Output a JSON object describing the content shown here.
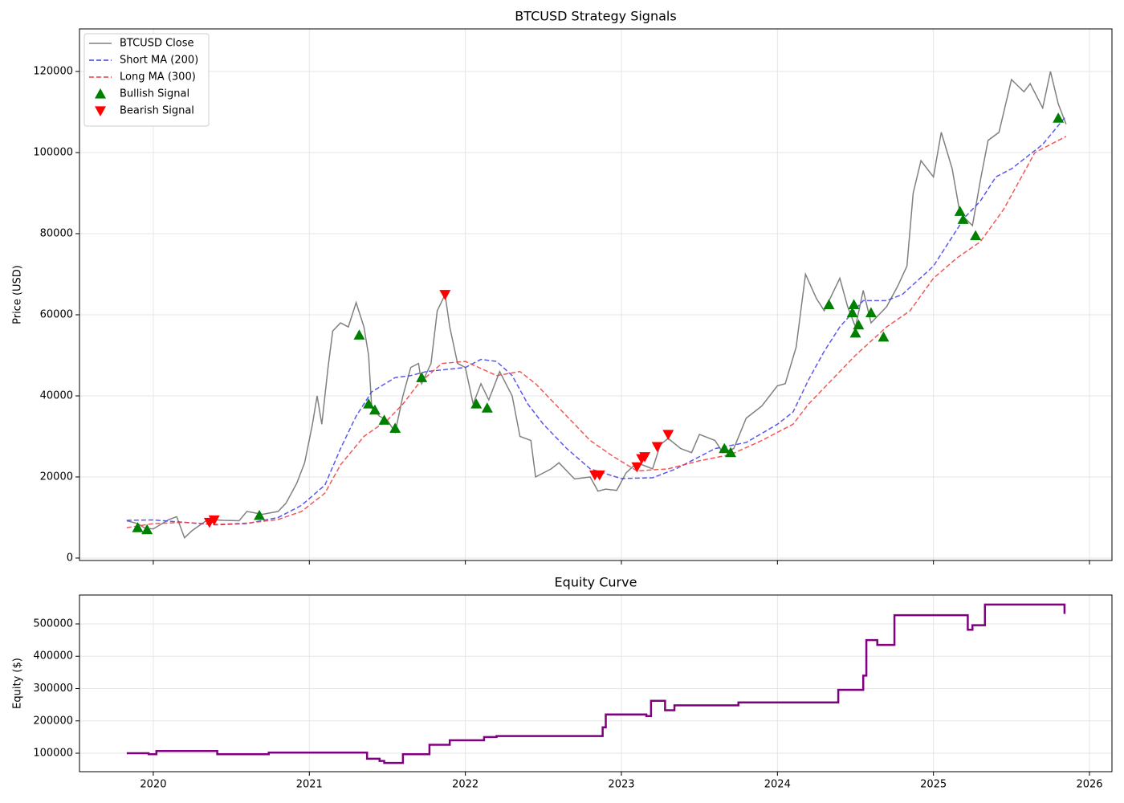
{
  "chart_data": [
    {
      "type": "line",
      "title": "BTCUSD Strategy Signals",
      "ylabel": "Price (USD)",
      "ylim": [
        -600,
        130500
      ],
      "yticks": [
        0,
        20000,
        40000,
        60000,
        80000,
        100000,
        120000
      ],
      "grid": true,
      "legend": "upper left",
      "series": [
        {
          "name": "BTCUSD Close",
          "color": "#808080",
          "style": "solid",
          "x": [
            2019.83,
            2019.9,
            2019.95,
            2020.0,
            2020.1,
            2020.15,
            2020.2,
            2020.25,
            2020.35,
            2020.45,
            2020.55,
            2020.6,
            2020.7,
            2020.8,
            2020.85,
            2020.92,
            2020.97,
            2021.02,
            2021.05,
            2021.08,
            2021.12,
            2021.15,
            2021.2,
            2021.25,
            2021.3,
            2021.35,
            2021.38,
            2021.4,
            2021.45,
            2021.5,
            2021.55,
            2021.6,
            2021.65,
            2021.7,
            2021.72,
            2021.78,
            2021.82,
            2021.87,
            2021.9,
            2021.95,
            2022.0,
            2022.05,
            2022.1,
            2022.15,
            2022.22,
            2022.3,
            2022.35,
            2022.42,
            2022.45,
            2022.55,
            2022.6,
            2022.7,
            2022.8,
            2022.85,
            2022.9,
            2022.97,
            2023.03,
            2023.1,
            2023.2,
            2023.25,
            2023.3,
            2023.38,
            2023.45,
            2023.5,
            2023.6,
            2023.65,
            2023.72,
            2023.8,
            2023.9,
            2024.0,
            2024.05,
            2024.12,
            2024.18,
            2024.25,
            2024.3,
            2024.4,
            2024.45,
            2024.5,
            2024.55,
            2024.6,
            2024.7,
            2024.77,
            2024.83,
            2024.87,
            2024.92,
            2025.0,
            2025.05,
            2025.12,
            2025.17,
            2025.25,
            2025.3,
            2025.35,
            2025.42,
            2025.5,
            2025.58,
            2025.62,
            2025.7,
            2025.75,
            2025.8,
            2025.85
          ],
          "values": [
            9200,
            8500,
            7300,
            7200,
            9500,
            10200,
            5000,
            6800,
            9500,
            9300,
            9200,
            11500,
            10800,
            11500,
            13500,
            18500,
            23500,
            33000,
            40000,
            33000,
            47000,
            56000,
            58000,
            57000,
            63000,
            57000,
            50000,
            37000,
            35000,
            34000,
            31000,
            40000,
            47000,
            48000,
            43000,
            48000,
            61000,
            65000,
            57000,
            48000,
            47000,
            38000,
            43000,
            39000,
            46000,
            40000,
            30000,
            29000,
            20000,
            22000,
            23500,
            19500,
            20000,
            16500,
            17000,
            16700,
            21000,
            23500,
            22000,
            28000,
            29500,
            27000,
            26000,
            30500,
            29000,
            26000,
            27000,
            34500,
            37500,
            42500,
            43000,
            52000,
            70000,
            64000,
            61000,
            69000,
            62000,
            57000,
            66000,
            58000,
            62000,
            67000,
            72000,
            90000,
            98000,
            94000,
            105000,
            96000,
            85000,
            82000,
            93000,
            103000,
            105000,
            118000,
            115000,
            117000,
            111000,
            120000,
            112000,
            107000
          ]
        },
        {
          "name": "Short MA (200)",
          "color": "#3b3bf0",
          "style": "dashed",
          "x": [
            2019.83,
            2020.0,
            2020.2,
            2020.4,
            2020.6,
            2020.8,
            2020.95,
            2021.1,
            2021.2,
            2021.3,
            2021.4,
            2021.55,
            2021.65,
            2021.75,
            2022.0,
            2022.1,
            2022.2,
            2022.3,
            2022.4,
            2022.5,
            2022.65,
            2022.8,
            2023.0,
            2023.2,
            2023.35,
            2023.5,
            2023.6,
            2023.8,
            2024.0,
            2024.1,
            2024.2,
            2024.3,
            2024.4,
            2024.55,
            2024.7,
            2024.8,
            2025.0,
            2025.1,
            2025.2,
            2025.3,
            2025.4,
            2025.5,
            2025.6,
            2025.7,
            2025.85
          ],
          "values": [
            9300,
            9400,
            8800,
            8200,
            8500,
            10000,
            13000,
            18000,
            27000,
            35000,
            41000,
            44500,
            45000,
            46000,
            47000,
            49000,
            48500,
            45000,
            38000,
            33000,
            27000,
            22000,
            19600,
            19800,
            22000,
            25000,
            27000,
            28500,
            33000,
            36000,
            44000,
            51000,
            57000,
            63500,
            63500,
            65000,
            72000,
            78000,
            84000,
            88000,
            94000,
            96000,
            99000,
            102000,
            109000
          ]
        },
        {
          "name": "Long MA (300)",
          "color": "#f03b3b",
          "style": "dashed",
          "x": [
            2019.83,
            2020.0,
            2020.2,
            2020.4,
            2020.6,
            2020.8,
            2020.95,
            2021.1,
            2021.2,
            2021.35,
            2021.5,
            2021.6,
            2021.7,
            2021.85,
            2022.0,
            2022.2,
            2022.35,
            2022.45,
            2022.6,
            2022.8,
            2022.95,
            2023.1,
            2023.3,
            2023.5,
            2023.7,
            2023.9,
            2024.1,
            2024.2,
            2024.35,
            2024.5,
            2024.7,
            2024.85,
            2025.0,
            2025.15,
            2025.3,
            2025.45,
            2025.55,
            2025.65,
            2025.75,
            2025.85
          ],
          "values": [
            7500,
            8500,
            8800,
            8300,
            8600,
            9500,
            11500,
            16000,
            23000,
            30000,
            34000,
            38000,
            43000,
            48000,
            48500,
            45000,
            46000,
            43000,
            37000,
            29000,
            25000,
            21500,
            22000,
            24000,
            25500,
            29000,
            33000,
            38000,
            44000,
            50000,
            57000,
            61000,
            69000,
            74000,
            78000,
            86000,
            93000,
            100000,
            102000,
            104000
          ]
        },
        {
          "name": "Bullish Signal",
          "color": "#008000",
          "style": "triangle-up",
          "x": [
            2019.9,
            2019.96,
            2020.68,
            2021.32,
            2021.38,
            2021.42,
            2021.48,
            2021.55,
            2021.72,
            2022.07,
            2022.14,
            2023.66,
            2023.7,
            2024.33,
            2024.48,
            2024.49,
            2024.5,
            2024.52,
            2024.6,
            2024.68,
            2025.17,
            2025.19,
            2025.27,
            2025.8
          ],
          "values": [
            7500,
            7000,
            10500,
            55000,
            38000,
            36500,
            34000,
            32000,
            44500,
            38000,
            37000,
            27000,
            26000,
            62500,
            60500,
            62500,
            55500,
            57500,
            60500,
            54500,
            85500,
            83500,
            79500,
            108500
          ]
        },
        {
          "name": "Bearish Signal",
          "color": "#ff0000",
          "style": "triangle-down",
          "x": [
            2020.36,
            2020.39,
            2021.87,
            2022.83,
            2022.86,
            2023.1,
            2023.13,
            2023.15,
            2023.23,
            2023.3
          ],
          "values": [
            8800,
            9400,
            65000,
            20500,
            20500,
            22500,
            24500,
            25000,
            27500,
            30500
          ]
        }
      ]
    },
    {
      "type": "step",
      "title": "Equity Curve",
      "ylabel": "Equity ($)",
      "xlim": [
        2019.527,
        2026.144
      ],
      "xticks": [
        2020,
        2021,
        2022,
        2023,
        2024,
        2025,
        2026
      ],
      "ylim": [
        42900,
        589400
      ],
      "yticks": [
        100000,
        200000,
        300000,
        400000,
        500000
      ],
      "grid": true,
      "series": [
        {
          "color": "#800080",
          "style": "solid",
          "x": [
            2019.83,
            2019.97,
            2020.02,
            2020.41,
            2020.74,
            2021.37,
            2021.45,
            2021.48,
            2021.6,
            2021.77,
            2021.9,
            2022.12,
            2022.2,
            2022.88,
            2022.9,
            2023.16,
            2023.19,
            2023.28,
            2023.34,
            2023.75,
            2024.39,
            2024.55,
            2024.57,
            2024.64,
            2024.75,
            2025.22,
            2025.25,
            2025.33,
            2025.84
          ],
          "values": [
            100000,
            97000,
            107000,
            97000,
            102000,
            83000,
            76000,
            70000,
            97000,
            126000,
            140000,
            150000,
            153000,
            180000,
            220000,
            215000,
            262000,
            233000,
            248000,
            257000,
            296000,
            340000,
            450000,
            435000,
            527000,
            482000,
            496000,
            560000,
            531000
          ]
        }
      ]
    }
  ]
}
